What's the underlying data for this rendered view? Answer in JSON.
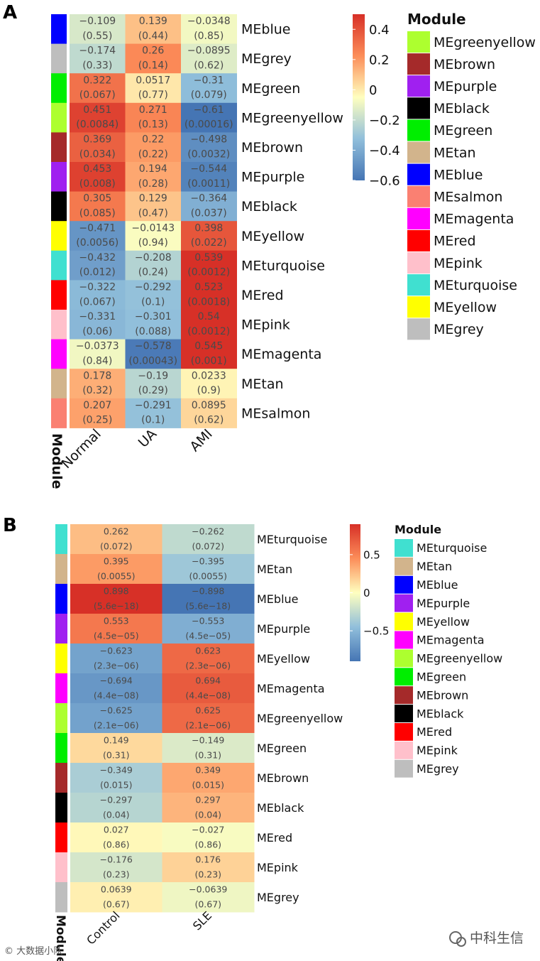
{
  "panels": [
    {
      "label": "A",
      "columns": [
        "Normal",
        "UA",
        "AMI"
      ],
      "module_axis_label": "Module",
      "scale": {
        "title": "",
        "min": -0.6,
        "max": 0.5,
        "ticks": [
          0.4,
          0.2,
          0,
          -0.2,
          -0.4,
          -0.6
        ],
        "tick_labels": [
          "0.4",
          "0.2",
          "0",
          "−0.2",
          "−0.4",
          "−0.6"
        ]
      },
      "legend_title": "Module",
      "legend": [
        {
          "name": "MEgreenyellow",
          "color": "#adff2f"
        },
        {
          "name": "MEbrown",
          "color": "#a52a2a"
        },
        {
          "name": "MEpurple",
          "color": "#a020f0"
        },
        {
          "name": "MEblack",
          "color": "#000000"
        },
        {
          "name": "MEgreen",
          "color": "#00ee00"
        },
        {
          "name": "MEtan",
          "color": "#d2b48c"
        },
        {
          "name": "MEblue",
          "color": "#0000ff"
        },
        {
          "name": "MEsalmon",
          "color": "#fa8072"
        },
        {
          "name": "MEmagenta",
          "color": "#ff00ff"
        },
        {
          "name": "MEred",
          "color": "#ff0000"
        },
        {
          "name": "MEpink",
          "color": "#ffc0cb"
        },
        {
          "name": "MEturquoise",
          "color": "#40e0d0"
        },
        {
          "name": "MEyellow",
          "color": "#ffff00"
        },
        {
          "name": "MEgrey",
          "color": "#bebebe"
        }
      ],
      "rows": [
        {
          "name": "MEblue",
          "color": "#0000ff",
          "values": [
            -0.109,
            0.139,
            -0.0348
          ],
          "labels": [
            "−0.109",
            "0.139",
            "−0.0348"
          ],
          "pvalues": [
            "(0.55)",
            "(0.44)",
            "(0.85)"
          ]
        },
        {
          "name": "MEgrey",
          "color": "#bebebe",
          "values": [
            -0.174,
            0.26,
            -0.0895
          ],
          "labels": [
            "−0.174",
            "0.26",
            "−0.0895"
          ],
          "pvalues": [
            "(0.33)",
            "(0.14)",
            "(0.62)"
          ]
        },
        {
          "name": "MEgreen",
          "color": "#00ee00",
          "values": [
            0.322,
            0.0517,
            -0.31
          ],
          "labels": [
            "0.322",
            "0.0517",
            "−0.31"
          ],
          "pvalues": [
            "(0.067)",
            "(0.77)",
            "(0.079)"
          ]
        },
        {
          "name": "MEgreenyellow",
          "color": "#adff2f",
          "values": [
            0.451,
            0.271,
            -0.61
          ],
          "labels": [
            "0.451",
            "0.271",
            "−0.61"
          ],
          "pvalues": [
            "(0.0084)",
            "(0.13)",
            "(0.00016)"
          ]
        },
        {
          "name": "MEbrown",
          "color": "#a52a2a",
          "values": [
            0.369,
            0.22,
            -0.498
          ],
          "labels": [
            "0.369",
            "0.22",
            "−0.498"
          ],
          "pvalues": [
            "(0.034)",
            "(0.22)",
            "(0.0032)"
          ]
        },
        {
          "name": "MEpurple",
          "color": "#a020f0",
          "values": [
            0.453,
            0.194,
            -0.544
          ],
          "labels": [
            "0.453",
            "0.194",
            "−0.544"
          ],
          "pvalues": [
            "(0.008)",
            "(0.28)",
            "(0.0011)"
          ]
        },
        {
          "name": "MEblack",
          "color": "#000000",
          "values": [
            0.305,
            0.129,
            -0.364
          ],
          "labels": [
            "0.305",
            "0.129",
            "−0.364"
          ],
          "pvalues": [
            "(0.085)",
            "(0.47)",
            "(0.037)"
          ]
        },
        {
          "name": "MEyellow",
          "color": "#ffff00",
          "values": [
            -0.471,
            -0.0143,
            0.398
          ],
          "labels": [
            "−0.471",
            "−0.0143",
            "0.398"
          ],
          "pvalues": [
            "(0.0056)",
            "(0.94)",
            "(0.022)"
          ]
        },
        {
          "name": "MEturquoise",
          "color": "#40e0d0",
          "values": [
            -0.432,
            -0.208,
            0.539
          ],
          "labels": [
            "−0.432",
            "−0.208",
            "0.539"
          ],
          "pvalues": [
            "(0.012)",
            "(0.24)",
            "(0.0012)"
          ]
        },
        {
          "name": "MEred",
          "color": "#ff0000",
          "values": [
            -0.322,
            -0.292,
            0.523
          ],
          "labels": [
            "−0.322",
            "−0.292",
            "0.523"
          ],
          "pvalues": [
            "(0.067)",
            "(0.1)",
            "(0.0018)"
          ]
        },
        {
          "name": "MEpink",
          "color": "#ffc0cb",
          "values": [
            -0.331,
            -0.301,
            0.54
          ],
          "labels": [
            "−0.331",
            "−0.301",
            "0.54"
          ],
          "pvalues": [
            "(0.06)",
            "(0.088)",
            "(0.0012)"
          ]
        },
        {
          "name": "MEmagenta",
          "color": "#ff00ff",
          "values": [
            -0.0373,
            -0.578,
            0.545
          ],
          "labels": [
            "−0.0373",
            "−0.578",
            "0.545"
          ],
          "pvalues": [
            "(0.84)",
            "(0.00043)",
            "(0.001)"
          ]
        },
        {
          "name": "MEtan",
          "color": "#d2b48c",
          "values": [
            0.178,
            -0.19,
            0.0233
          ],
          "labels": [
            "0.178",
            "−0.19",
            "0.0233"
          ],
          "pvalues": [
            "(0.32)",
            "(0.29)",
            "(0.9)"
          ]
        },
        {
          "name": "MEsalmon",
          "color": "#fa8072",
          "values": [
            0.207,
            -0.291,
            0.0895
          ],
          "labels": [
            "0.207",
            "−0.291",
            "0.0895"
          ],
          "pvalues": [
            "(0.25)",
            "(0.1)",
            "(0.62)"
          ]
        }
      ]
    },
    {
      "label": "B",
      "columns": [
        "Control",
        "SLE"
      ],
      "module_axis_label": "Module",
      "scale": {
        "title": "",
        "min": -0.9,
        "max": 0.9,
        "ticks": [
          0.5,
          0,
          -0.5
        ],
        "tick_labels": [
          "0.5",
          "0",
          "−0.5"
        ]
      },
      "legend_title": "Module",
      "legend": [
        {
          "name": "MEturquoise",
          "color": "#40e0d0"
        },
        {
          "name": "MEtan",
          "color": "#d2b48c"
        },
        {
          "name": "MEblue",
          "color": "#0000ff"
        },
        {
          "name": "MEpurple",
          "color": "#a020f0"
        },
        {
          "name": "MEyellow",
          "color": "#ffff00"
        },
        {
          "name": "MEmagenta",
          "color": "#ff00ff"
        },
        {
          "name": "MEgreenyellow",
          "color": "#adff2f"
        },
        {
          "name": "MEgreen",
          "color": "#00ee00"
        },
        {
          "name": "MEbrown",
          "color": "#a52a2a"
        },
        {
          "name": "MEblack",
          "color": "#000000"
        },
        {
          "name": "MEred",
          "color": "#ff0000"
        },
        {
          "name": "MEpink",
          "color": "#ffc0cb"
        },
        {
          "name": "MEgrey",
          "color": "#bebebe"
        }
      ],
      "rows": [
        {
          "name": "MEturquoise",
          "color": "#40e0d0",
          "values": [
            0.262,
            -0.262
          ],
          "labels": [
            "0.262",
            "−0.262"
          ],
          "pvalues": [
            "(0.072)",
            "(0.072)"
          ]
        },
        {
          "name": "MEtan",
          "color": "#d2b48c",
          "values": [
            0.395,
            -0.395
          ],
          "labels": [
            "0.395",
            "−0.395"
          ],
          "pvalues": [
            "(0.0055)",
            "(0.0055)"
          ]
        },
        {
          "name": "MEblue",
          "color": "#0000ff",
          "values": [
            0.898,
            -0.898
          ],
          "labels": [
            "0.898",
            "−0.898"
          ],
          "pvalues": [
            "(5.6e−18)",
            "(5.6e−18)"
          ]
        },
        {
          "name": "MEpurple",
          "color": "#a020f0",
          "values": [
            0.553,
            -0.553
          ],
          "labels": [
            "0.553",
            "−0.553"
          ],
          "pvalues": [
            "(4.5e−05)",
            "(4.5e−05)"
          ]
        },
        {
          "name": "MEyellow",
          "color": "#ffff00",
          "values": [
            -0.623,
            0.623
          ],
          "labels": [
            "−0.623",
            "0.623"
          ],
          "pvalues": [
            "(2.3e−06)",
            "(2.3e−06)"
          ]
        },
        {
          "name": "MEmagenta",
          "color": "#ff00ff",
          "values": [
            -0.694,
            0.694
          ],
          "labels": [
            "−0.694",
            "0.694"
          ],
          "pvalues": [
            "(4.4e−08)",
            "(4.4e−08)"
          ]
        },
        {
          "name": "MEgreenyellow",
          "color": "#adff2f",
          "values": [
            -0.625,
            0.625
          ],
          "labels": [
            "−0.625",
            "0.625"
          ],
          "pvalues": [
            "(2.1e−06)",
            "(2.1e−06)"
          ]
        },
        {
          "name": "MEgreen",
          "color": "#00ee00",
          "values": [
            0.149,
            -0.149
          ],
          "labels": [
            "0.149",
            "−0.149"
          ],
          "pvalues": [
            "(0.31)",
            "(0.31)"
          ]
        },
        {
          "name": "MEbrown",
          "color": "#a52a2a",
          "values": [
            -0.349,
            0.349
          ],
          "labels": [
            "−0.349",
            "0.349"
          ],
          "pvalues": [
            "(0.015)",
            "(0.015)"
          ]
        },
        {
          "name": "MEblack",
          "color": "#000000",
          "values": [
            -0.297,
            0.297
          ],
          "labels": [
            "−0.297",
            "0.297"
          ],
          "pvalues": [
            "(0.04)",
            "(0.04)"
          ]
        },
        {
          "name": "MEred",
          "color": "#ff0000",
          "values": [
            0.027,
            -0.027
          ],
          "labels": [
            "0.027",
            "−0.027"
          ],
          "pvalues": [
            "(0.86)",
            "(0.86)"
          ]
        },
        {
          "name": "MEpink",
          "color": "#ffc0cb",
          "values": [
            -0.176,
            0.176
          ],
          "labels": [
            "−0.176",
            "0.176"
          ],
          "pvalues": [
            "(0.23)",
            "(0.23)"
          ]
        },
        {
          "name": "MEgrey",
          "color": "#bebebe",
          "values": [
            0.0639,
            -0.0639
          ],
          "labels": [
            "0.0639",
            "−0.0639"
          ],
          "pvalues": [
            "(0.67)",
            "(0.67)"
          ]
        }
      ]
    }
  ],
  "chart_data": [
    {
      "type": "heatmap",
      "title": "A",
      "x": [
        "Normal",
        "UA",
        "AMI"
      ],
      "y": [
        "MEblue",
        "MEgrey",
        "MEgreen",
        "MEgreenyellow",
        "MEbrown",
        "MEpurple",
        "MEblack",
        "MEyellow",
        "MEturquoise",
        "MEred",
        "MEpink",
        "MEmagenta",
        "MEtan",
        "MEsalmon"
      ],
      "values": [
        [
          -0.109,
          0.139,
          -0.0348
        ],
        [
          -0.174,
          0.26,
          -0.0895
        ],
        [
          0.322,
          0.0517,
          -0.31
        ],
        [
          0.451,
          0.271,
          -0.61
        ],
        [
          0.369,
          0.22,
          -0.498
        ],
        [
          0.453,
          0.194,
          -0.544
        ],
        [
          0.305,
          0.129,
          -0.364
        ],
        [
          -0.471,
          -0.0143,
          0.398
        ],
        [
          -0.432,
          -0.208,
          0.539
        ],
        [
          -0.322,
          -0.292,
          0.523
        ],
        [
          -0.331,
          -0.301,
          0.54
        ],
        [
          -0.0373,
          -0.578,
          0.545
        ],
        [
          0.178,
          -0.19,
          0.0233
        ],
        [
          0.207,
          -0.291,
          0.0895
        ]
      ],
      "colorbar_range": [
        -0.6,
        0.5
      ]
    },
    {
      "type": "heatmap",
      "title": "B",
      "x": [
        "Control",
        "SLE"
      ],
      "y": [
        "MEturquoise",
        "MEtan",
        "MEblue",
        "MEpurple",
        "MEyellow",
        "MEmagenta",
        "MEgreenyellow",
        "MEgreen",
        "MEbrown",
        "MEblack",
        "MEred",
        "MEpink",
        "MEgrey"
      ],
      "values": [
        [
          0.262,
          -0.262
        ],
        [
          0.395,
          -0.395
        ],
        [
          0.898,
          -0.898
        ],
        [
          0.553,
          -0.553
        ],
        [
          -0.623,
          0.623
        ],
        [
          -0.694,
          0.694
        ],
        [
          -0.625,
          0.625
        ],
        [
          0.149,
          -0.149
        ],
        [
          -0.349,
          0.349
        ],
        [
          -0.297,
          0.297
        ],
        [
          0.027,
          -0.027
        ],
        [
          -0.176,
          0.176
        ],
        [
          0.0639,
          -0.0639
        ]
      ],
      "colorbar_range": [
        -0.9,
        0.9
      ]
    }
  ],
  "watermarks": {
    "left": "© 大数据小队",
    "right": "中科生信"
  }
}
